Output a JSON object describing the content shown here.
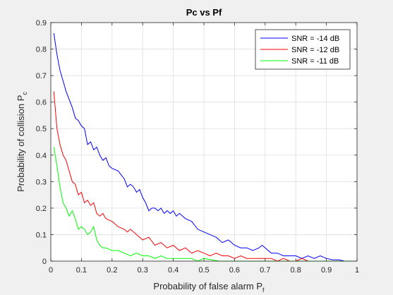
{
  "chart_data": {
    "type": "line",
    "title": "Pc vs Pf",
    "xlabel": "Probability of false alarm P",
    "xlabel_sub": "f",
    "ylabel": "Probability of collision P",
    "ylabel_sub": "c",
    "xlim": [
      0,
      1
    ],
    "ylim": [
      0,
      0.9
    ],
    "xticks": [
      0,
      0.1,
      0.2,
      0.3,
      0.4,
      0.5,
      0.6,
      0.7,
      0.8,
      0.9,
      1
    ],
    "xtick_labels": [
      "0",
      "0.1",
      "0.2",
      "0.3",
      "0.4",
      "0.5",
      "0.6",
      "0.7",
      "0.8",
      "0.9",
      "1"
    ],
    "yticks": [
      0,
      0.1,
      0.2,
      0.3,
      0.4,
      0.5,
      0.6,
      0.7,
      0.8,
      0.9
    ],
    "ytick_labels": [
      "0",
      "0.1",
      "0.2",
      "0.3",
      "0.4",
      "0.5",
      "0.6",
      "0.7",
      "0.8",
      "0.9"
    ],
    "grid": true,
    "legend_position": "top-right",
    "series": [
      {
        "name": "SNR = -14 dB",
        "color": "#0000ff",
        "x": [
          0.01,
          0.02,
          0.03,
          0.04,
          0.05,
          0.06,
          0.07,
          0.08,
          0.09,
          0.1,
          0.11,
          0.12,
          0.13,
          0.14,
          0.15,
          0.16,
          0.17,
          0.18,
          0.19,
          0.2,
          0.22,
          0.24,
          0.25,
          0.26,
          0.27,
          0.28,
          0.29,
          0.3,
          0.31,
          0.32,
          0.33,
          0.34,
          0.35,
          0.36,
          0.37,
          0.38,
          0.39,
          0.4,
          0.41,
          0.42,
          0.44,
          0.46,
          0.48,
          0.5,
          0.52,
          0.54,
          0.56,
          0.58,
          0.6,
          0.62,
          0.64,
          0.66,
          0.68,
          0.69,
          0.7,
          0.72,
          0.74,
          0.76,
          0.78,
          0.8,
          0.82,
          0.84,
          0.86,
          0.88,
          0.9,
          0.92,
          0.94,
          0.96,
          0.98,
          1.0
        ],
        "y": [
          0.86,
          0.78,
          0.72,
          0.68,
          0.64,
          0.61,
          0.58,
          0.54,
          0.53,
          0.51,
          0.5,
          0.44,
          0.45,
          0.42,
          0.43,
          0.4,
          0.38,
          0.39,
          0.36,
          0.35,
          0.34,
          0.31,
          0.28,
          0.29,
          0.28,
          0.26,
          0.27,
          0.24,
          0.22,
          0.19,
          0.2,
          0.2,
          0.19,
          0.2,
          0.18,
          0.19,
          0.18,
          0.19,
          0.17,
          0.18,
          0.16,
          0.15,
          0.12,
          0.11,
          0.1,
          0.09,
          0.07,
          0.08,
          0.06,
          0.05,
          0.05,
          0.04,
          0.05,
          0.06,
          0.05,
          0.03,
          0.03,
          0.02,
          0.02,
          0.02,
          0.01,
          0.02,
          0.01,
          0.02,
          0.01,
          0.005,
          0.005,
          0.0,
          0.0,
          0.0
        ]
      },
      {
        "name": "SNR = -12 dB",
        "color": "#ff0000",
        "x": [
          0.01,
          0.02,
          0.03,
          0.04,
          0.05,
          0.06,
          0.07,
          0.08,
          0.09,
          0.1,
          0.11,
          0.12,
          0.13,
          0.14,
          0.15,
          0.16,
          0.17,
          0.18,
          0.2,
          0.22,
          0.24,
          0.25,
          0.26,
          0.28,
          0.3,
          0.32,
          0.34,
          0.36,
          0.38,
          0.4,
          0.42,
          0.44,
          0.46,
          0.48,
          0.5,
          0.52,
          0.54,
          0.56,
          0.58,
          0.6,
          0.62,
          0.64,
          0.66,
          0.68,
          0.7,
          0.72,
          0.74,
          0.76,
          0.78,
          0.8,
          0.82,
          0.84,
          0.86,
          0.88,
          0.9,
          0.92,
          0.94,
          0.96,
          0.98,
          1.0
        ],
        "y": [
          0.64,
          0.5,
          0.44,
          0.4,
          0.38,
          0.34,
          0.3,
          0.29,
          0.25,
          0.26,
          0.22,
          0.23,
          0.21,
          0.22,
          0.18,
          0.17,
          0.18,
          0.16,
          0.15,
          0.13,
          0.12,
          0.11,
          0.12,
          0.1,
          0.08,
          0.09,
          0.06,
          0.07,
          0.05,
          0.06,
          0.04,
          0.05,
          0.03,
          0.04,
          0.03,
          0.02,
          0.03,
          0.02,
          0.02,
          0.01,
          0.02,
          0.01,
          0.01,
          0.01,
          0.01,
          0.01,
          0.0,
          0.01,
          0.0,
          0.0,
          0.01,
          0.0,
          0.0,
          0.0,
          0.0,
          0.0,
          0.0,
          0.0,
          0.0,
          0.0
        ]
      },
      {
        "name": "SNR = -11 dB",
        "color": "#00ff00",
        "x": [
          0.01,
          0.02,
          0.03,
          0.04,
          0.05,
          0.06,
          0.07,
          0.08,
          0.09,
          0.1,
          0.11,
          0.12,
          0.13,
          0.14,
          0.15,
          0.16,
          0.17,
          0.18,
          0.2,
          0.22,
          0.24,
          0.26,
          0.28,
          0.3,
          0.32,
          0.34,
          0.36,
          0.38,
          0.4,
          0.42,
          0.44,
          0.46,
          0.48,
          0.5,
          0.55,
          0.6,
          0.65,
          0.7,
          0.75,
          0.8,
          0.85,
          0.9,
          0.95,
          1.0
        ],
        "y": [
          0.43,
          0.36,
          0.28,
          0.22,
          0.2,
          0.17,
          0.19,
          0.16,
          0.12,
          0.13,
          0.12,
          0.1,
          0.11,
          0.13,
          0.08,
          0.06,
          0.05,
          0.05,
          0.04,
          0.04,
          0.03,
          0.02,
          0.03,
          0.02,
          0.02,
          0.01,
          0.02,
          0.01,
          0.01,
          0.01,
          0.01,
          0.01,
          0.0,
          0.01,
          0.0,
          0.0,
          0.0,
          0.0,
          0.0,
          0.0,
          0.0,
          0.0,
          0.0,
          0.0
        ]
      }
    ]
  }
}
